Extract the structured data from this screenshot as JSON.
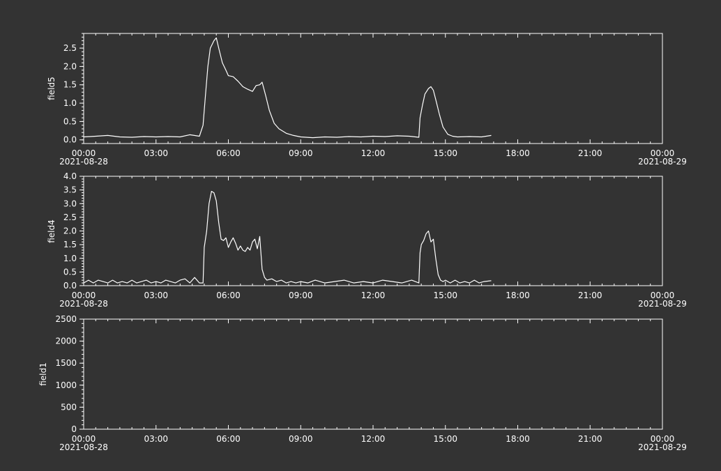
{
  "theme": {
    "background": "#333333",
    "foreground": "#ffffff"
  },
  "x_axis": {
    "ticks": [
      "00:00",
      "03:00",
      "06:00",
      "09:00",
      "12:00",
      "15:00",
      "18:00",
      "21:00",
      "00:00"
    ],
    "date_start": "2021-08-28",
    "date_end": "2021-08-29",
    "range": [
      "2021-08-28 00:00",
      "2021-08-29 00:00"
    ]
  },
  "chart_data": [
    {
      "type": "line",
      "ylabel": "field5",
      "ylim": [
        -0.1,
        2.9
      ],
      "yticks": [
        "0.0",
        "0.5",
        "1.0",
        "1.5",
        "2.0",
        "2.5"
      ],
      "ytick_values": [
        0,
        0.5,
        1.0,
        1.5,
        2.0,
        2.5
      ],
      "series": [
        {
          "x_hours": [
            0.0,
            0.5,
            1.0,
            1.5,
            2.0,
            2.5,
            3.0,
            3.5,
            4.0,
            4.4,
            4.8,
            4.95,
            5.05,
            5.15,
            5.25,
            5.4,
            5.5,
            5.6,
            5.75,
            5.9,
            6.0,
            6.2,
            6.4,
            6.6,
            6.8,
            7.0,
            7.15,
            7.3,
            7.4,
            7.55,
            7.7,
            7.9,
            8.1,
            8.4,
            8.7,
            9.0,
            9.5,
            10.0,
            10.5,
            11.0,
            11.5,
            12.0,
            12.5,
            13.0,
            13.5,
            13.9,
            13.95,
            14.05,
            14.15,
            14.3,
            14.4,
            14.5,
            14.6,
            14.75,
            14.9,
            15.1,
            15.3,
            15.5,
            16.0,
            16.5,
            16.9
          ],
          "values": [
            0.08,
            0.1,
            0.12,
            0.08,
            0.07,
            0.09,
            0.08,
            0.09,
            0.08,
            0.14,
            0.1,
            0.4,
            1.2,
            2.0,
            2.5,
            2.7,
            2.78,
            2.5,
            2.1,
            1.9,
            1.75,
            1.72,
            1.6,
            1.45,
            1.38,
            1.32,
            1.48,
            1.5,
            1.57,
            1.2,
            0.8,
            0.45,
            0.3,
            0.18,
            0.12,
            0.08,
            0.06,
            0.08,
            0.07,
            0.09,
            0.08,
            0.1,
            0.09,
            0.11,
            0.1,
            0.07,
            0.6,
            0.95,
            1.25,
            1.4,
            1.45,
            1.35,
            1.1,
            0.7,
            0.35,
            0.15,
            0.1,
            0.08,
            0.09,
            0.08,
            0.12
          ]
        }
      ]
    },
    {
      "type": "line",
      "ylabel": "field4",
      "ylim": [
        0,
        4.0
      ],
      "yticks": [
        "0.0",
        "0.5",
        "1.0",
        "1.5",
        "2.0",
        "2.5",
        "3.0",
        "3.5",
        "4.0"
      ],
      "ytick_values": [
        0,
        0.5,
        1.0,
        1.5,
        2.0,
        2.5,
        3.0,
        3.5,
        4.0
      ],
      "series": [
        {
          "x_hours": [
            0.0,
            0.2,
            0.4,
            0.6,
            0.8,
            1.0,
            1.2,
            1.4,
            1.6,
            1.8,
            2.0,
            2.2,
            2.4,
            2.6,
            2.8,
            3.0,
            3.2,
            3.4,
            3.6,
            3.8,
            4.0,
            4.2,
            4.4,
            4.6,
            4.8,
            4.95,
            5.0,
            5.1,
            5.2,
            5.3,
            5.4,
            5.5,
            5.6,
            5.7,
            5.8,
            5.9,
            6.0,
            6.1,
            6.2,
            6.3,
            6.4,
            6.5,
            6.6,
            6.7,
            6.8,
            6.9,
            7.0,
            7.1,
            7.2,
            7.3,
            7.4,
            7.5,
            7.6,
            7.8,
            8.0,
            8.2,
            8.4,
            8.6,
            8.8,
            9.0,
            9.3,
            9.6,
            10.0,
            10.4,
            10.8,
            11.2,
            11.6,
            12.0,
            12.4,
            12.8,
            13.2,
            13.6,
            13.9,
            13.95,
            14.0,
            14.1,
            14.2,
            14.3,
            14.4,
            14.5,
            14.6,
            14.7,
            14.8,
            14.9,
            15.0,
            15.2,
            15.4,
            15.6,
            15.8,
            16.0,
            16.2,
            16.4,
            16.6,
            16.9
          ],
          "values": [
            0.1,
            0.2,
            0.1,
            0.2,
            0.15,
            0.1,
            0.2,
            0.1,
            0.15,
            0.1,
            0.2,
            0.1,
            0.15,
            0.2,
            0.1,
            0.15,
            0.1,
            0.2,
            0.15,
            0.1,
            0.2,
            0.25,
            0.1,
            0.3,
            0.1,
            0.1,
            1.4,
            2.0,
            3.0,
            3.45,
            3.4,
            3.1,
            2.3,
            1.7,
            1.65,
            1.75,
            1.4,
            1.6,
            1.75,
            1.55,
            1.3,
            1.45,
            1.3,
            1.25,
            1.4,
            1.3,
            1.6,
            1.7,
            1.35,
            1.8,
            0.6,
            0.3,
            0.2,
            0.25,
            0.15,
            0.2,
            0.1,
            0.15,
            0.1,
            0.15,
            0.1,
            0.2,
            0.1,
            0.15,
            0.2,
            0.1,
            0.15,
            0.1,
            0.2,
            0.15,
            0.1,
            0.2,
            0.1,
            1.2,
            1.5,
            1.65,
            1.9,
            2.0,
            1.6,
            1.7,
            1.0,
            0.4,
            0.2,
            0.15,
            0.2,
            0.1,
            0.2,
            0.1,
            0.15,
            0.1,
            0.2,
            0.1,
            0.15,
            0.18
          ]
        }
      ]
    },
    {
      "type": "line",
      "ylabel": "field1",
      "ylim": [
        0,
        2500
      ],
      "yticks": [
        "0",
        "500",
        "1000",
        "1500",
        "2000",
        "2500"
      ],
      "ytick_values": [
        0,
        500,
        1000,
        1500,
        2000,
        2500
      ],
      "series": []
    }
  ]
}
